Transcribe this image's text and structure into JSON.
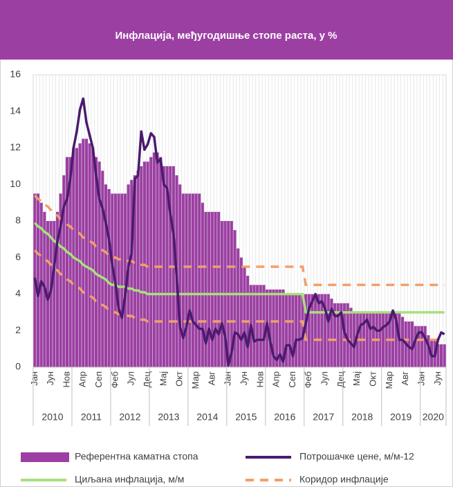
{
  "chart_data": {
    "type": "combo",
    "title": "Инфлација, међугодишње стопе раста, у %",
    "categories": [
      "Јан",
      null,
      null,
      null,
      null,
      "Јун",
      null,
      null,
      null,
      null,
      "Нов",
      null,
      null,
      null,
      null,
      "Апр",
      null,
      null,
      null,
      null,
      "Сеп",
      null,
      null,
      null,
      null,
      "Феб",
      null,
      null,
      null,
      null,
      "Јул",
      null,
      null,
      null,
      null,
      "Дец",
      null,
      null,
      null,
      null,
      "Мај",
      null,
      null,
      null,
      null,
      "Окт",
      null,
      null,
      null,
      null,
      "Мар",
      null,
      null,
      null,
      null,
      "Авг",
      null,
      null,
      null,
      null,
      "Јан",
      null,
      null,
      null,
      null,
      "Јун",
      null,
      null,
      null,
      null,
      "Нов",
      null,
      null,
      null,
      null,
      "Апр",
      null,
      null,
      null,
      null,
      "Сеп",
      null,
      null,
      null,
      null,
      "Феб",
      null,
      null,
      null,
      null,
      "Јул",
      null,
      null,
      null,
      null,
      "Дец",
      null,
      null,
      null,
      null,
      "Мај",
      null,
      null,
      null,
      null,
      "Окт",
      null,
      null,
      null,
      null,
      "Мар",
      null,
      null,
      null,
      null,
      "Авг",
      null,
      null,
      null,
      null,
      "Јан",
      null,
      null,
      null,
      null,
      "Јун",
      null,
      null
    ],
    "year_labels": [
      "2010",
      "2011",
      "2012",
      "2013",
      "2014",
      "2015",
      "2016",
      "2017",
      "2018",
      "2019",
      "2020"
    ],
    "ylim": [
      0,
      16
    ],
    "yticks": [
      0,
      2,
      4,
      6,
      8,
      10,
      12,
      14,
      16
    ],
    "grid": "x",
    "series": [
      {
        "name": "Референтна каматна стопа",
        "kind": "bar",
        "color": "#9c3fa3",
        "values": [
          9.5,
          9.5,
          9,
          8.5,
          8,
          8,
          8,
          8.5,
          9.5,
          10.5,
          11.5,
          11.5,
          12,
          12,
          12.25,
          12.5,
          12.5,
          12.25,
          12,
          11.5,
          11.25,
          10.75,
          10,
          9.75,
          9.5,
          9.5,
          9.5,
          9.5,
          9.5,
          10,
          10.25,
          10.5,
          10.75,
          11,
          11.25,
          11.25,
          11.5,
          11.75,
          11.75,
          11.5,
          11,
          11,
          11,
          11,
          10.5,
          10,
          9.5,
          9.5,
          9.5,
          9.5,
          9.5,
          9.5,
          9,
          8.5,
          8.5,
          8.5,
          8.5,
          8.5,
          8,
          8,
          8,
          8,
          7.5,
          6.5,
          6,
          5.5,
          5,
          4.5,
          4.5,
          4.5,
          4.5,
          4.5,
          4.25,
          4.25,
          4.25,
          4.25,
          4.25,
          4.25,
          4,
          4,
          4,
          4,
          4,
          4,
          4,
          4,
          4,
          4,
          4,
          4,
          4,
          4,
          3.75,
          3.5,
          3.5,
          3.5,
          3.5,
          3.5,
          3.25,
          3,
          3,
          3,
          3,
          3,
          3,
          3,
          3,
          3,
          3,
          3,
          3,
          3,
          3,
          3,
          2.75,
          2.5,
          2.5,
          2.5,
          2.25,
          2.25,
          2.25,
          2.25,
          1.75,
          1.5,
          1.5,
          1.25,
          1.25,
          1.25
        ]
      },
      {
        "name": "Потрошачке цене, м/м-12",
        "kind": "line",
        "color": "#4a1b6e",
        "values": [
          4.9,
          3.9,
          4.7,
          4.4,
          3.7,
          4.2,
          5.5,
          6.9,
          7.7,
          8.8,
          9.2,
          10.3,
          12.0,
          12.9,
          14.1,
          14.7,
          13.4,
          12.7,
          12.0,
          10.5,
          9.2,
          8.7,
          7.9,
          7.0,
          5.6,
          4.6,
          3.2,
          2.7,
          3.9,
          5.5,
          6.2,
          10.3,
          10.5,
          12.9,
          11.9,
          12.2,
          12.8,
          12.6,
          11.2,
          11.4,
          10.0,
          9.8,
          8.4,
          7.3,
          4.9,
          2.2,
          1.6,
          2.2,
          3.1,
          2.5,
          2.3,
          2.1,
          2.1,
          1.3,
          2.1,
          1.5,
          2.1,
          1.8,
          2.4,
          1.7,
          0.1,
          0.8,
          1.9,
          1.8,
          1.5,
          1.9,
          1.1,
          2.3,
          1.4,
          1.5,
          1.5,
          1.5,
          2.4,
          1.4,
          0.6,
          0.4,
          0.7,
          0.3,
          1.2,
          1.2,
          0.6,
          1.5,
          1.5,
          1.6,
          2.4,
          3.2,
          3.6,
          4.0,
          3.5,
          3.6,
          3.2,
          2.5,
          3.2,
          2.8,
          2.8,
          3.0,
          1.9,
          1.5,
          1.3,
          1.1,
          1.8,
          2.3,
          2.4,
          2.6,
          2.1,
          2.2,
          2.0,
          2.0,
          2.2,
          2.3,
          2.5,
          3.1,
          2.6,
          1.5,
          1.5,
          1.3,
          1.1,
          1.0,
          1.5,
          1.9,
          1.9,
          1.6,
          1.2,
          0.6,
          0.6,
          1.5,
          1.9,
          1.8
        ]
      },
      {
        "name": "Циљана инфлација, м/м",
        "kind": "line",
        "color": "#a8e07c",
        "values": [
          7.9,
          7.7,
          7.6,
          7.4,
          7.3,
          7.1,
          6.9,
          6.8,
          6.6,
          6.5,
          6.3,
          6.2,
          6.0,
          5.9,
          5.8,
          5.6,
          5.5,
          5.4,
          5.3,
          5.1,
          5.0,
          4.9,
          4.8,
          4.6,
          4.5,
          4.5,
          4.4,
          4.4,
          4.4,
          4.3,
          4.3,
          4.2,
          4.2,
          4.1,
          4.1,
          4.0,
          4,
          4,
          4,
          4,
          4,
          4,
          4,
          4,
          4,
          4,
          4,
          4,
          4,
          4,
          4,
          4,
          4,
          4,
          4,
          4,
          4,
          4,
          4,
          4,
          4,
          4,
          4,
          4,
          4,
          4,
          4,
          4,
          4,
          4,
          4,
          4,
          4,
          4,
          4,
          4,
          4,
          4,
          4,
          4,
          4,
          4,
          4,
          4,
          3,
          3,
          3,
          3,
          3,
          3,
          3,
          3,
          3,
          3,
          3,
          3,
          3,
          3,
          3,
          3,
          3,
          3,
          3,
          3,
          3,
          3,
          3,
          3,
          3,
          3,
          3,
          3,
          3,
          3,
          3,
          3,
          3,
          3,
          3,
          3,
          3,
          3,
          3,
          3,
          3,
          3,
          3,
          3
        ]
      },
      {
        "name": "Коридор инфлације",
        "kind": "dashed",
        "color": "#f0a06c",
        "values": [
          9.4,
          9.2,
          9.1,
          8.9,
          8.8,
          8.6,
          8.4,
          8.3,
          8.1,
          8.0,
          7.8,
          7.7,
          7.5,
          7.4,
          7.3,
          7.1,
          7.0,
          6.9,
          6.8,
          6.6,
          6.5,
          6.4,
          6.3,
          6.1,
          6.0,
          6.0,
          5.9,
          5.9,
          5.9,
          5.8,
          5.8,
          5.7,
          5.7,
          5.6,
          5.6,
          5.5,
          5.5,
          5.5,
          5.5,
          5.5,
          5.5,
          5.5,
          5.5,
          5.5,
          5.5,
          5.5,
          5.5,
          5.5,
          5.5,
          5.5,
          5.5,
          5.5,
          5.5,
          5.5,
          5.5,
          5.5,
          5.5,
          5.5,
          5.5,
          5.5,
          5.5,
          5.5,
          5.5,
          5.5,
          5.5,
          5.5,
          5.5,
          5.5,
          5.5,
          5.5,
          5.5,
          5.5,
          5.5,
          5.5,
          5.5,
          5.5,
          5.5,
          5.5,
          5.5,
          5.5,
          5.5,
          5.5,
          5.5,
          5.5,
          4.5,
          4.5,
          4.5,
          4.5,
          4.5,
          4.5,
          4.5,
          4.5,
          4.5,
          4.5,
          4.5,
          4.5,
          4.5,
          4.5,
          4.5,
          4.5,
          4.5,
          4.5,
          4.5,
          4.5,
          4.5,
          4.5,
          4.5,
          4.5,
          4.5,
          4.5,
          4.5,
          4.5,
          4.5,
          4.5,
          4.5,
          4.5,
          4.5,
          4.5,
          4.5,
          4.5,
          4.5,
          4.5,
          4.5,
          4.5,
          4.5,
          4.5,
          4.5,
          4.5
        ],
        "lower": [
          6.4,
          6.2,
          6.1,
          5.9,
          5.8,
          5.6,
          5.4,
          5.3,
          5.1,
          5.0,
          4.8,
          4.7,
          4.5,
          4.4,
          4.3,
          4.1,
          4.0,
          3.9,
          3.8,
          3.6,
          3.5,
          3.4,
          3.3,
          3.1,
          3.0,
          3.0,
          2.9,
          2.9,
          2.9,
          2.8,
          2.8,
          2.7,
          2.7,
          2.6,
          2.6,
          2.5,
          2.5,
          2.5,
          2.5,
          2.5,
          2.5,
          2.5,
          2.5,
          2.5,
          2.5,
          2.5,
          2.5,
          2.5,
          2.5,
          2.5,
          2.5,
          2.5,
          2.5,
          2.5,
          2.5,
          2.5,
          2.5,
          2.5,
          2.5,
          2.5,
          2.5,
          2.5,
          2.5,
          2.5,
          2.5,
          2.5,
          2.5,
          2.5,
          2.5,
          2.5,
          2.5,
          2.5,
          2.5,
          2.5,
          2.5,
          2.5,
          2.5,
          2.5,
          2.5,
          2.5,
          2.5,
          2.5,
          2.5,
          2.5,
          1.5,
          1.5,
          1.5,
          1.5,
          1.5,
          1.5,
          1.5,
          1.5,
          1.5,
          1.5,
          1.5,
          1.5,
          1.5,
          1.5,
          1.5,
          1.5,
          1.5,
          1.5,
          1.5,
          1.5,
          1.5,
          1.5,
          1.5,
          1.5,
          1.5,
          1.5,
          1.5,
          1.5,
          1.5,
          1.5,
          1.5,
          1.5,
          1.5,
          1.5,
          1.5,
          1.5,
          1.5,
          1.5,
          1.5,
          1.5,
          1.5,
          1.5,
          1.5,
          1.5
        ]
      }
    ]
  }
}
